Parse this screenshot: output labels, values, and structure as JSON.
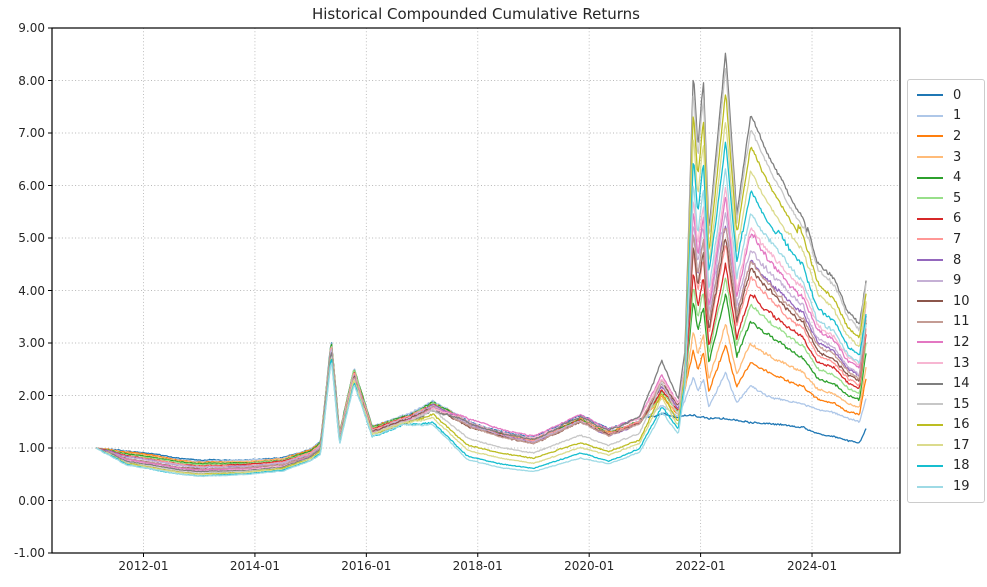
{
  "figure": {
    "background": "#ffffff",
    "axes_edge_color": "#000000",
    "grid_color": "#b8b8b8",
    "text_color": "#262626"
  },
  "chart_data": {
    "type": "line",
    "title": "Historical Compounded Cumulative Returns",
    "xlabel": "",
    "ylabel": "",
    "xlim": [
      2010.36,
      2025.58
    ],
    "ylim": [
      -1,
      9
    ],
    "grid": "dotted",
    "legend_position": "right-outside",
    "xtick_values": [
      2012,
      2014,
      2016,
      2018,
      2020,
      2022,
      2024
    ],
    "xtick_labels": [
      "2012-01",
      "2014-01",
      "2016-01",
      "2018-01",
      "2020-01",
      "2022-01",
      "2024-01"
    ],
    "ytick_values": [
      9,
      8,
      7,
      6,
      5,
      4,
      3,
      2,
      1,
      0,
      -1
    ],
    "ytick_labels": [
      "9.00",
      "8.00",
      "7.00",
      "6.00",
      "5.00",
      "4.00",
      "3.00",
      "2.00",
      "1.00",
      "0.00",
      "-1.00"
    ],
    "x": [
      2011.15,
      2011.7,
      2012.4,
      2013.0,
      2013.8,
      2014.5,
      2015.0,
      2015.18,
      2015.37,
      2015.52,
      2015.78,
      2016.1,
      2016.7,
      2017.2,
      2017.8,
      2018.4,
      2019.0,
      2019.85,
      2020.35,
      2020.9,
      2021.3,
      2021.6,
      2021.72,
      2021.87,
      2021.95,
      2022.05,
      2022.15,
      2022.45,
      2022.65,
      2022.9,
      2023.2,
      2023.55,
      2023.85,
      2024.1,
      2024.4,
      2024.65,
      2024.85,
      2024.97
    ],
    "series": [
      {
        "name": "0",
        "color": "#1f77b4",
        "values": [
          1.0,
          0.93,
          0.84,
          0.76,
          0.78,
          0.85,
          1.02,
          1.15,
          3.1,
          1.3,
          2.55,
          1.42,
          1.62,
          1.88,
          1.52,
          1.3,
          1.18,
          1.58,
          1.32,
          1.52,
          1.6,
          1.55,
          1.58,
          1.58,
          1.55,
          1.56,
          1.53,
          1.52,
          1.48,
          1.45,
          1.42,
          1.38,
          1.32,
          1.22,
          1.15,
          1.08,
          1.05,
          1.32
        ]
      },
      {
        "name": "1",
        "color": "#aec7e8",
        "values": [
          1.0,
          0.92,
          0.82,
          0.74,
          0.77,
          0.84,
          1.01,
          1.14,
          3.08,
          1.29,
          2.54,
          1.41,
          1.61,
          1.87,
          1.49,
          1.27,
          1.14,
          1.54,
          1.27,
          1.49,
          1.78,
          1.6,
          1.9,
          2.3,
          2.04,
          2.26,
          1.75,
          2.37,
          1.81,
          2.16,
          1.95,
          1.85,
          1.78,
          1.68,
          1.6,
          1.5,
          1.45,
          1.9
        ]
      },
      {
        "name": "2",
        "color": "#ff7f0e",
        "values": [
          1.0,
          0.9,
          0.81,
          0.73,
          0.75,
          0.82,
          1.0,
          1.13,
          3.06,
          1.28,
          2.52,
          1.4,
          1.6,
          1.86,
          1.49,
          1.27,
          1.14,
          1.54,
          1.27,
          1.49,
          1.95,
          1.62,
          2.1,
          2.8,
          2.44,
          2.75,
          2.04,
          2.9,
          2.12,
          2.6,
          2.4,
          2.22,
          2.08,
          1.85,
          1.76,
          1.61,
          1.56,
          2.25
        ]
      },
      {
        "name": "3",
        "color": "#ffbb78",
        "values": [
          1.0,
          0.89,
          0.79,
          0.71,
          0.74,
          0.81,
          0.98,
          1.11,
          3.05,
          1.26,
          2.51,
          1.39,
          1.59,
          1.85,
          1.48,
          1.26,
          1.13,
          1.53,
          1.26,
          1.48,
          1.98,
          1.64,
          2.14,
          3.2,
          2.76,
          3.14,
          2.28,
          3.32,
          2.36,
          2.96,
          2.72,
          2.5,
          2.32,
          2.03,
          1.92,
          1.75,
          1.68,
          2.45
        ]
      },
      {
        "name": "4",
        "color": "#2ca02c",
        "values": [
          1.0,
          0.87,
          0.78,
          0.7,
          0.72,
          0.79,
          0.97,
          1.1,
          3.03,
          1.25,
          2.49,
          1.38,
          1.58,
          1.84,
          1.48,
          1.26,
          1.13,
          1.52,
          1.26,
          1.48,
          2.01,
          1.66,
          2.18,
          3.7,
          3.16,
          3.63,
          2.57,
          3.85,
          2.67,
          3.4,
          3.11,
          2.84,
          2.62,
          2.27,
          2.13,
          1.92,
          1.84,
          2.75
        ]
      },
      {
        "name": "5",
        "color": "#98df8a",
        "values": [
          1.0,
          0.86,
          0.76,
          0.68,
          0.71,
          0.78,
          0.96,
          1.09,
          3.01,
          1.24,
          2.48,
          1.37,
          1.58,
          1.83,
          1.47,
          1.25,
          1.12,
          1.52,
          1.25,
          1.47,
          2.04,
          1.68,
          2.22,
          4.0,
          3.4,
          3.93,
          2.74,
          4.17,
          2.86,
          3.67,
          3.34,
          3.04,
          2.8,
          2.41,
          2.26,
          2.02,
          1.93,
          2.9
        ]
      },
      {
        "name": "6",
        "color": "#d62728",
        "values": [
          1.0,
          0.85,
          0.74,
          0.66,
          0.69,
          0.77,
          0.95,
          1.08,
          2.99,
          1.23,
          2.46,
          1.36,
          1.57,
          1.82,
          1.46,
          1.24,
          1.11,
          1.51,
          1.24,
          1.46,
          2.07,
          1.7,
          2.26,
          4.3,
          3.64,
          4.22,
          2.91,
          4.48,
          3.05,
          3.94,
          3.57,
          3.24,
          2.98,
          2.55,
          2.39,
          2.12,
          2.02,
          3.05
        ]
      },
      {
        "name": "7",
        "color": "#ff9896",
        "values": [
          1.0,
          0.83,
          0.73,
          0.65,
          0.68,
          0.75,
          0.94,
          1.07,
          2.97,
          1.22,
          2.45,
          1.35,
          1.56,
          1.81,
          1.46,
          1.24,
          1.11,
          1.5,
          1.24,
          1.46,
          2.1,
          1.72,
          2.3,
          4.6,
          3.88,
          4.52,
          3.09,
          4.8,
          3.23,
          4.2,
          3.81,
          3.45,
          3.16,
          2.69,
          2.51,
          2.22,
          2.12,
          3.18
        ]
      },
      {
        "name": "8",
        "color": "#9467bd",
        "values": [
          1.0,
          0.82,
          0.71,
          0.63,
          0.66,
          0.74,
          0.92,
          1.05,
          2.96,
          1.2,
          2.43,
          1.34,
          1.55,
          1.8,
          1.45,
          1.23,
          1.1,
          1.49,
          1.23,
          1.45,
          2.13,
          1.74,
          2.34,
          5.0,
          4.2,
          4.91,
          3.32,
          5.22,
          3.48,
          4.56,
          4.12,
          3.72,
          3.4,
          2.88,
          2.68,
          2.36,
          2.25,
          3.35
        ]
      },
      {
        "name": "9",
        "color": "#c5b0d5",
        "values": [
          1.0,
          0.8,
          0.7,
          0.62,
          0.65,
          0.72,
          0.91,
          1.04,
          2.94,
          1.19,
          2.42,
          1.33,
          1.54,
          1.79,
          1.45,
          1.23,
          1.1,
          1.49,
          1.23,
          1.45,
          2.16,
          1.76,
          2.38,
          5.2,
          4.36,
          5.11,
          3.44,
          5.43,
          3.6,
          4.74,
          4.28,
          3.86,
          3.52,
          2.97,
          2.76,
          2.43,
          2.31,
          3.45
        ]
      },
      {
        "name": "10",
        "color": "#8c564b",
        "values": [
          1.0,
          0.79,
          0.68,
          0.6,
          0.63,
          0.71,
          0.9,
          1.03,
          2.92,
          1.18,
          2.4,
          1.32,
          1.53,
          1.78,
          1.44,
          1.22,
          1.09,
          1.48,
          1.22,
          1.44,
          2.19,
          1.78,
          2.42,
          4.75,
          4.0,
          4.66,
          3.18,
          4.96,
          3.33,
          4.34,
          3.93,
          3.55,
          3.25,
          2.76,
          2.58,
          2.28,
          2.17,
          3.28
        ]
      },
      {
        "name": "11",
        "color": "#c49c94",
        "values": [
          1.0,
          0.78,
          0.66,
          0.58,
          0.62,
          0.7,
          0.89,
          1.02,
          2.9,
          1.17,
          2.39,
          1.31,
          1.52,
          1.77,
          1.43,
          1.21,
          1.08,
          1.47,
          1.21,
          1.43,
          2.22,
          1.8,
          2.46,
          4.9,
          4.12,
          4.81,
          3.26,
          5.11,
          3.42,
          4.47,
          4.04,
          3.65,
          3.34,
          2.83,
          2.64,
          2.32,
          2.21,
          3.33
        ]
      },
      {
        "name": "12",
        "color": "#e377c2",
        "values": [
          1.0,
          0.76,
          0.65,
          0.57,
          0.6,
          0.68,
          0.88,
          1.01,
          2.88,
          1.16,
          2.37,
          1.3,
          1.51,
          1.76,
          1.55,
          1.34,
          1.22,
          1.62,
          1.35,
          1.58,
          2.35,
          1.85,
          2.55,
          5.5,
          4.6,
          5.4,
          3.61,
          5.75,
          3.79,
          5.01,
          4.51,
          4.06,
          3.7,
          3.12,
          2.89,
          2.53,
          2.4,
          3.6
        ]
      },
      {
        "name": "13",
        "color": "#f7b6d2",
        "values": [
          1.0,
          0.75,
          0.63,
          0.55,
          0.59,
          0.67,
          0.86,
          0.99,
          2.87,
          1.14,
          2.36,
          1.29,
          1.5,
          1.75,
          1.52,
          1.31,
          1.19,
          1.58,
          1.32,
          1.55,
          2.3,
          1.82,
          2.5,
          5.7,
          4.76,
          5.6,
          3.73,
          5.96,
          3.91,
          5.18,
          4.67,
          4.2,
          3.82,
          3.2,
          2.97,
          2.6,
          2.46,
          3.68
        ]
      },
      {
        "name": "14",
        "color": "#7f7f7f",
        "values": [
          1.0,
          0.73,
          0.62,
          0.54,
          0.57,
          0.65,
          0.85,
          0.98,
          2.85,
          1.13,
          2.34,
          1.28,
          1.49,
          1.74,
          1.5,
          1.28,
          1.16,
          1.55,
          1.3,
          1.55,
          2.6,
          1.9,
          2.8,
          8.1,
          6.68,
          7.95,
          5.12,
          8.5,
          5.4,
          7.32,
          6.52,
          5.83,
          5.26,
          4.34,
          3.98,
          3.41,
          3.2,
          4.1
        ]
      },
      {
        "name": "15",
        "color": "#c7c7c7",
        "values": [
          1.0,
          0.72,
          0.6,
          0.52,
          0.56,
          0.64,
          0.84,
          0.97,
          2.83,
          1.12,
          2.33,
          1.27,
          1.49,
          1.68,
          1.18,
          1.0,
          0.9,
          1.22,
          1.02,
          1.25,
          2.2,
          1.6,
          2.5,
          7.75,
          6.4,
          7.61,
          4.92,
          8.12,
          5.19,
          7.01,
          6.27,
          5.58,
          5.03,
          4.15,
          3.81,
          3.27,
          3.07,
          3.95
        ]
      },
      {
        "name": "16",
        "color": "#bcbd22",
        "values": [
          1.0,
          0.71,
          0.58,
          0.5,
          0.54,
          0.63,
          0.83,
          0.96,
          2.81,
          1.11,
          2.31,
          1.26,
          1.48,
          1.62,
          1.06,
          0.9,
          0.8,
          1.1,
          0.93,
          1.15,
          2.05,
          1.5,
          2.4,
          7.4,
          6.12,
          7.27,
          4.71,
          7.75,
          4.97,
          6.7,
          5.99,
          5.33,
          4.81,
          3.97,
          3.64,
          3.12,
          2.93,
          3.8
        ]
      },
      {
        "name": "17",
        "color": "#dbdb8d",
        "values": [
          1.0,
          0.69,
          0.57,
          0.49,
          0.53,
          0.61,
          0.82,
          0.95,
          2.79,
          1.1,
          2.3,
          1.25,
          1.47,
          1.55,
          0.96,
          0.8,
          0.7,
          0.98,
          0.84,
          1.05,
          1.9,
          1.42,
          2.3,
          6.9,
          5.72,
          6.78,
          4.42,
          7.22,
          4.66,
          6.25,
          5.6,
          5.0,
          4.51,
          3.73,
          3.41,
          2.94,
          2.76,
          3.6
        ]
      },
      {
        "name": "18",
        "color": "#17becf",
        "values": [
          1.0,
          0.68,
          0.55,
          0.47,
          0.51,
          0.6,
          0.8,
          0.93,
          2.78,
          1.08,
          2.28,
          1.24,
          1.46,
          1.48,
          0.84,
          0.68,
          0.6,
          0.88,
          0.73,
          0.96,
          1.75,
          1.32,
          2.2,
          6.45,
          5.36,
          6.34,
          4.16,
          6.75,
          4.38,
          5.85,
          5.25,
          4.71,
          4.25,
          3.52,
          3.22,
          2.78,
          2.62,
          3.42
        ]
      },
      {
        "name": "19",
        "color": "#9edae5",
        "values": [
          1.0,
          0.66,
          0.54,
          0.46,
          0.5,
          0.58,
          0.79,
          0.92,
          2.76,
          1.07,
          2.27,
          1.23,
          1.45,
          1.43,
          0.78,
          0.62,
          0.55,
          0.8,
          0.68,
          0.9,
          1.65,
          1.25,
          2.1,
          6.0,
          5.0,
          5.9,
          3.9,
          6.28,
          4.1,
          5.45,
          4.9,
          4.4,
          4.0,
          3.3,
          3.05,
          2.65,
          2.5,
          3.25
        ]
      }
    ]
  }
}
